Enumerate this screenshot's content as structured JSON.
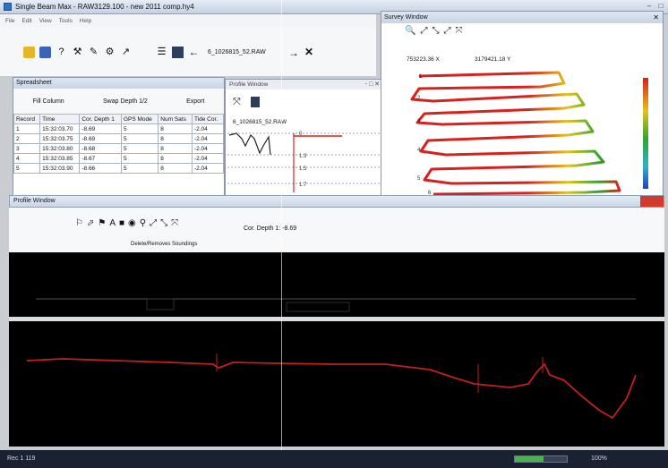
{
  "main_window": {
    "title": "Single Beam Max - RAW3129.100 - new 2011 comp.hy4",
    "menu_items": [
      "File",
      "Edit",
      "View",
      "Tools",
      "Help"
    ],
    "file_label": "6_1026815_52.RAW",
    "toolbar_icons": [
      "open-icon",
      "save-icon",
      "pin-icon",
      "tools-icon",
      "filter-icon",
      "cursor-icon",
      "list-icon",
      "book-icon",
      "back-arrow-icon",
      "forward-arrow-icon",
      "close-x-icon"
    ]
  },
  "spreadsheet": {
    "title": "Spreadsheet",
    "fill_column_btn": "Fill Column",
    "swap_btn": "Swap Depth 1/2",
    "export_btn": "Export",
    "columns": [
      "Record",
      "Time",
      "Cor. Depth 1",
      "GPS Mode",
      "Num Sats",
      "Tide Cor."
    ],
    "rows": [
      [
        "1",
        "15:32:03.70",
        "-8.69",
        "5",
        "8",
        "-2.04"
      ],
      [
        "2",
        "15:32:03.75",
        "-8.69",
        "5",
        "8",
        "-2.04"
      ],
      [
        "3",
        "15:32:03.80",
        "-8.68",
        "5",
        "8",
        "-2.04"
      ],
      [
        "4",
        "15:32:03.85",
        "-8.67",
        "5",
        "8",
        "-2.04"
      ],
      [
        "5",
        "15:32:03.90",
        "-8.66",
        "5",
        "8",
        "-2.04"
      ]
    ]
  },
  "small_profile": {
    "title": "Profile Window",
    "file_label": "6_1026815_52.RAW",
    "depth_ticks": [
      "0",
      "1.3",
      "1.5",
      "1.7"
    ]
  },
  "survey": {
    "title": "Survey Window",
    "coord_x": "753223.36 X",
    "coord_y": "3179421.18 Y",
    "line_labels": [
      "1",
      "2",
      "3",
      "4",
      "5",
      "6"
    ]
  },
  "profile_window": {
    "title": "Profile Window",
    "delete_label": "Delete/Removes Soundings",
    "depth_readout": "Cor. Depth 1: -8.69",
    "icons": [
      "flag-icon",
      "pointer-icon",
      "flag2-icon",
      "text-icon",
      "camera-icon",
      "settings-icon",
      "zoom-icon",
      "zoom-area-icon",
      "zoom-in-icon",
      "fit-icon"
    ]
  },
  "statusbar": {
    "left_text": "Rec 1 119",
    "progress": 0.55,
    "zoom_text": "100%"
  },
  "colors": {
    "track_red": "#d8201c",
    "track_green": "#2fa52f",
    "profile_line": "#c2201f"
  }
}
